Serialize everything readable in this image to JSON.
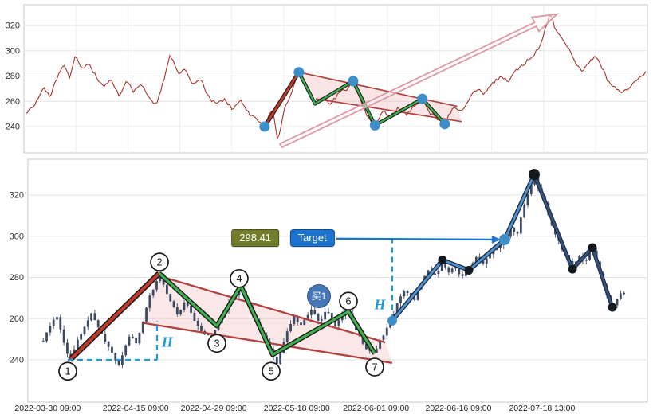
{
  "chart_data": {
    "type": "candlestick",
    "title": "",
    "ylabel": "",
    "xlabel": "",
    "ylim": [
      218,
      336
    ],
    "grid": true,
    "y_ticks": [
      240,
      260,
      280,
      300,
      320
    ],
    "x_ticks": [
      {
        "t": 0.032,
        "label": "2022-03-30 09:00"
      },
      {
        "t": 0.174,
        "label": "2022-04-15 09:00"
      },
      {
        "t": 0.3,
        "label": "2022-04-29 09:00"
      },
      {
        "t": 0.434,
        "label": "2022-05-18 09:00"
      },
      {
        "t": 0.562,
        "label": "2022-06-01 09:00"
      },
      {
        "t": 0.695,
        "label": "2022-06-16 09:00"
      },
      {
        "t": 0.83,
        "label": "2022-07-18 13:00"
      }
    ],
    "overview": {
      "path": [
        [
          0.003,
          250
        ],
        [
          0.019,
          259
        ],
        [
          0.032,
          271
        ],
        [
          0.041,
          263
        ],
        [
          0.054,
          280
        ],
        [
          0.064,
          288
        ],
        [
          0.074,
          278
        ],
        [
          0.083,
          297
        ],
        [
          0.093,
          285
        ],
        [
          0.105,
          290
        ],
        [
          0.118,
          277
        ],
        [
          0.13,
          272
        ],
        [
          0.141,
          277
        ],
        [
          0.153,
          263
        ],
        [
          0.164,
          276
        ],
        [
          0.176,
          268
        ],
        [
          0.189,
          273
        ],
        [
          0.202,
          263
        ],
        [
          0.212,
          257
        ],
        [
          0.225,
          278
        ],
        [
          0.235,
          297
        ],
        [
          0.248,
          282
        ],
        [
          0.258,
          286
        ],
        [
          0.271,
          273
        ],
        [
          0.284,
          277
        ],
        [
          0.297,
          262
        ],
        [
          0.309,
          258
        ],
        [
          0.322,
          262
        ],
        [
          0.335,
          253
        ],
        [
          0.348,
          261
        ],
        [
          0.361,
          250
        ],
        [
          0.373,
          246
        ],
        [
          0.386,
          240
        ],
        [
          0.399,
          255
        ],
        [
          0.407,
          228
        ],
        [
          0.417,
          252
        ],
        [
          0.427,
          265
        ],
        [
          0.441,
          283
        ],
        [
          0.454,
          270
        ],
        [
          0.467,
          258
        ],
        [
          0.48,
          263
        ],
        [
          0.492,
          258
        ],
        [
          0.505,
          266
        ],
        [
          0.518,
          270
        ],
        [
          0.528,
          276
        ],
        [
          0.54,
          260
        ],
        [
          0.55,
          248
        ],
        [
          0.563,
          241
        ],
        [
          0.575,
          252
        ],
        [
          0.588,
          248
        ],
        [
          0.601,
          255
        ],
        [
          0.614,
          250
        ],
        [
          0.627,
          257
        ],
        [
          0.639,
          262
        ],
        [
          0.652,
          250
        ],
        [
          0.665,
          246
        ],
        [
          0.675,
          242
        ],
        [
          0.688,
          255
        ],
        [
          0.701,
          252
        ],
        [
          0.714,
          262
        ],
        [
          0.726,
          270
        ],
        [
          0.739,
          266
        ],
        [
          0.752,
          274
        ],
        [
          0.765,
          280
        ],
        [
          0.777,
          276
        ],
        [
          0.79,
          285
        ],
        [
          0.803,
          290
        ],
        [
          0.816,
          296
        ],
        [
          0.829,
          305
        ],
        [
          0.844,
          330
        ],
        [
          0.854,
          315
        ],
        [
          0.864,
          308
        ],
        [
          0.875,
          300
        ],
        [
          0.885,
          290
        ],
        [
          0.895,
          283
        ],
        [
          0.905,
          290
        ],
        [
          0.916,
          296
        ],
        [
          0.926,
          288
        ],
        [
          0.936,
          277
        ],
        [
          0.949,
          270
        ],
        [
          0.959,
          266
        ],
        [
          0.972,
          272
        ],
        [
          0.985,
          278
        ],
        [
          0.997,
          283
        ]
      ],
      "flagpole": [
        [
          0.386,
          240
        ],
        [
          0.441,
          283
        ]
      ],
      "channel_upper": [
        [
          0.441,
          283
        ],
        [
          0.695,
          256
        ]
      ],
      "channel_lower": [
        [
          0.468,
          262
        ],
        [
          0.702,
          244
        ]
      ],
      "zigzag": [
        [
          0.441,
          283
        ],
        [
          0.467,
          258
        ],
        [
          0.528,
          276
        ],
        [
          0.563,
          241
        ],
        [
          0.639,
          262
        ],
        [
          0.675,
          242
        ]
      ],
      "pivot_dots": [
        [
          0.386,
          240
        ],
        [
          0.441,
          283
        ],
        [
          0.528,
          276
        ],
        [
          0.563,
          241
        ],
        [
          0.639,
          262
        ],
        [
          0.675,
          242
        ]
      ],
      "arrow": {
        "from": [
          0.412,
          225
        ],
        "to": [
          0.855,
          329
        ]
      }
    },
    "detail": {
      "path": [
        [
          0.022,
          249
        ],
        [
          0.026,
          250
        ],
        [
          0.045,
          262
        ],
        [
          0.058,
          248
        ],
        [
          0.068,
          240
        ],
        [
          0.084,
          252
        ],
        [
          0.103,
          263
        ],
        [
          0.12,
          252
        ],
        [
          0.135,
          243
        ],
        [
          0.148,
          237
        ],
        [
          0.163,
          252
        ],
        [
          0.176,
          248
        ],
        [
          0.193,
          268
        ],
        [
          0.212,
          282
        ],
        [
          0.228,
          270
        ],
        [
          0.241,
          262
        ],
        [
          0.254,
          268
        ],
        [
          0.27,
          258
        ],
        [
          0.287,
          252
        ],
        [
          0.296,
          251
        ],
        [
          0.305,
          257
        ],
        [
          0.322,
          266
        ],
        [
          0.344,
          276
        ],
        [
          0.357,
          265
        ],
        [
          0.369,
          258
        ],
        [
          0.382,
          250
        ],
        [
          0.395,
          243
        ],
        [
          0.403,
          238
        ],
        [
          0.416,
          252
        ],
        [
          0.429,
          262
        ],
        [
          0.441,
          256
        ],
        [
          0.457,
          265
        ],
        [
          0.47,
          258
        ],
        [
          0.483,
          265
        ],
        [
          0.495,
          257
        ],
        [
          0.508,
          261
        ],
        [
          0.517,
          264
        ],
        [
          0.528,
          255
        ],
        [
          0.54,
          248
        ],
        [
          0.552,
          244
        ],
        [
          0.56,
          243
        ],
        [
          0.573,
          252
        ],
        [
          0.588,
          259
        ],
        [
          0.598,
          270
        ],
        [
          0.609,
          274
        ],
        [
          0.622,
          268
        ],
        [
          0.635,
          278
        ],
        [
          0.647,
          284
        ],
        [
          0.66,
          280
        ],
        [
          0.669,
          288
        ],
        [
          0.678,
          282
        ],
        [
          0.688,
          286
        ],
        [
          0.699,
          280
        ],
        [
          0.712,
          284
        ],
        [
          0.725,
          290
        ],
        [
          0.737,
          287
        ],
        [
          0.75,
          293
        ],
        [
          0.763,
          296
        ],
        [
          0.77,
          298
        ],
        [
          0.779,
          304
        ],
        [
          0.789,
          300
        ],
        [
          0.798,
          312
        ],
        [
          0.807,
          320
        ],
        [
          0.817,
          330
        ],
        [
          0.825,
          322
        ],
        [
          0.835,
          315
        ],
        [
          0.846,
          305
        ],
        [
          0.856,
          298
        ],
        [
          0.866,
          292
        ],
        [
          0.879,
          284
        ],
        [
          0.889,
          290
        ],
        [
          0.901,
          288
        ],
        [
          0.911,
          295
        ],
        [
          0.923,
          282
        ],
        [
          0.933,
          272
        ],
        [
          0.943,
          265
        ],
        [
          0.956,
          272
        ],
        [
          0.965,
          272
        ]
      ],
      "flagpole": [
        [
          0.068,
          240
        ],
        [
          0.212,
          282
        ]
      ],
      "channel_upper": [
        [
          0.2085,
          281
        ],
        [
          0.5766,
          248.5
        ]
      ],
      "channel_lower": [
        [
          0.184,
          258
        ],
        [
          0.588,
          238.5
        ]
      ],
      "zigzag": [
        [
          0.212,
          282
        ],
        [
          0.305,
          256.5
        ],
        [
          0.3436,
          276
        ],
        [
          0.3951,
          242.5
        ],
        [
          0.5174,
          263.5
        ],
        [
          0.5598,
          243
        ]
      ],
      "uptrend": [
        [
          0.5881,
          259
        ],
        [
          0.6692,
          288.5
        ],
        [
          0.7117,
          283.5
        ],
        [
          0.7696,
          298.4
        ],
        [
          0.8172,
          330
        ]
      ],
      "downtrend": [
        [
          0.8172,
          330
        ],
        [
          0.879,
          284
        ],
        [
          0.9112,
          294.5
        ],
        [
          0.9434,
          265.5
        ]
      ],
      "pivot_circles": [
        {
          "n": "1",
          "x": 0.0643,
          "p": 234.5
        },
        {
          "n": "2",
          "x": 0.2124,
          "p": 287.5
        },
        {
          "n": "3",
          "x": 0.305,
          "p": 248.0
        },
        {
          "n": "4",
          "x": 0.341,
          "p": 279.5
        },
        {
          "n": "5",
          "x": 0.3926,
          "p": 234.5
        },
        {
          "n": "6",
          "x": 0.5174,
          "p": 268.5
        },
        {
          "n": "7",
          "x": 0.5598,
          "p": 236.5
        }
      ],
      "blue_dots": [
        [
          0.5881,
          259
        ],
        [
          0.7696,
          298.4
        ]
      ],
      "black_dots": [
        [
          0.6692,
          288.5
        ],
        [
          0.7117,
          283.5
        ],
        [
          0.8172,
          330
        ],
        [
          0.879,
          284
        ],
        [
          0.9112,
          294.5
        ],
        [
          0.9434,
          265.5
        ]
      ],
      "dashed": [
        [
          [
            0.0643,
            240
          ],
          [
            0.2085,
            240
          ]
        ],
        [
          [
            0.2085,
            240
          ],
          [
            0.2085,
            258.8
          ]
        ],
        [
          [
            0.5881,
            259.5
          ],
          [
            0.5881,
            299
          ]
        ]
      ],
      "h_labels": [
        {
          "text": "H",
          "x": 0.225,
          "p": 248.5
        },
        {
          "text": "H",
          "x": 0.568,
          "p": 266.7
        }
      ],
      "price_label": {
        "text": "298.41",
        "x": 0.367,
        "p": 299.1
      },
      "target_label": {
        "text": "Target",
        "x": 0.459,
        "p": 299.1
      },
      "buy_badge": {
        "text": "买1",
        "x": 0.4697,
        "p": 270.9
      },
      "target_arrow": {
        "from": [
          0.498,
          298.8
        ],
        "to": [
          0.763,
          298.4
        ]
      }
    },
    "colors": {
      "price_line": "#a93226",
      "candle": "#3c4963",
      "flagpole": "#c0392b",
      "channel": "#b0413e",
      "channel_fill": "#eeb4b4",
      "zigzag": "#3faf4f",
      "pivot_dot": "#3d8ec9",
      "dashed": "#1e9ad6",
      "target": "#1b74d1",
      "arrow": "#dc9aa4",
      "price_box": "#727d2c",
      "buy_badge": "#4576b8"
    }
  }
}
